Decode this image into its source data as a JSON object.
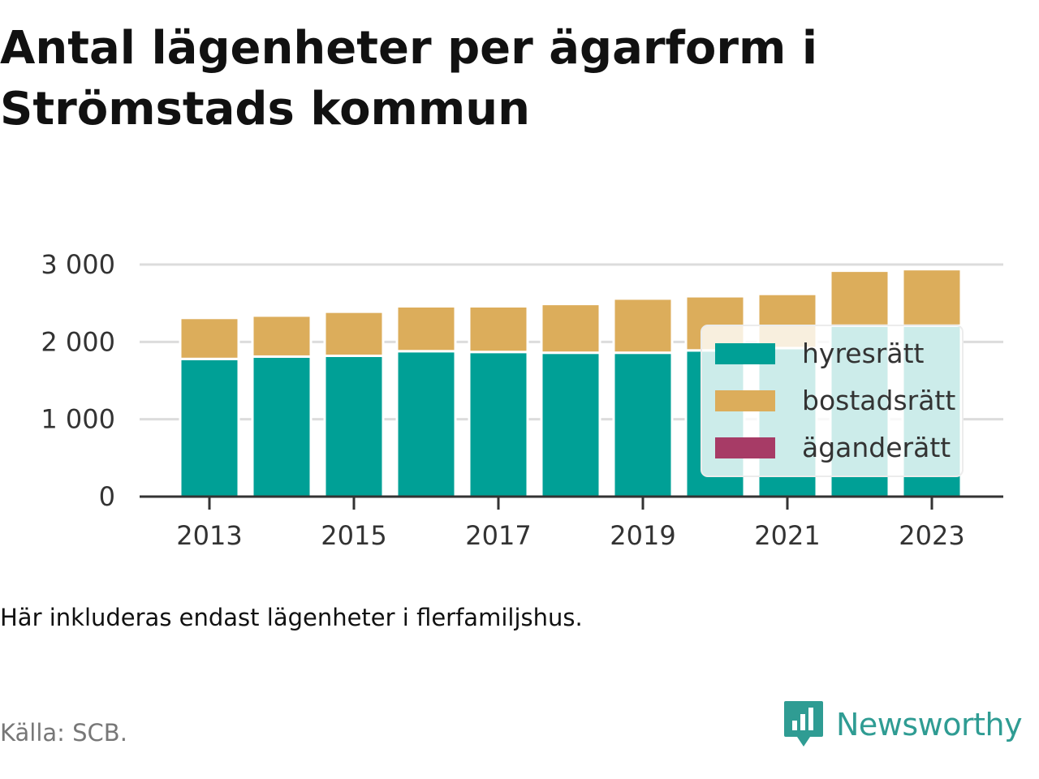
{
  "title": "Antal lägenheter per ägarform i Strömstads kommun",
  "note": "Här inkluderas endast lägenheter i flerfamiljshus.",
  "source": "Källa: SCB.",
  "brand": {
    "name": "Newsworthy",
    "color": "#2f9c93",
    "icon": "newsworthy-chart-bubble-icon"
  },
  "chart_data": {
    "type": "bar",
    "stacked": true,
    "title": "Antal lägenheter per ägarform i Strömstads kommun",
    "xlabel": "",
    "ylabel": "",
    "categories": [
      "2013",
      "2014",
      "2015",
      "2016",
      "2017",
      "2018",
      "2019",
      "2020",
      "2021",
      "2022",
      "2023"
    ],
    "x_tick_labels": [
      "2013",
      "2015",
      "2017",
      "2019",
      "2021",
      "2023"
    ],
    "y_tick_labels": [
      "0",
      "1 000",
      "2 000",
      "3 000"
    ],
    "y_ticks": [
      0,
      1000,
      2000,
      3000
    ],
    "ylim": [
      0,
      3000
    ],
    "grid": true,
    "legend_position": "bottom-right",
    "series": [
      {
        "name": "hyresrätt",
        "color": "#00a096",
        "values": [
          1780,
          1810,
          1820,
          1880,
          1870,
          1860,
          1860,
          1890,
          1920,
          2210,
          2210
        ]
      },
      {
        "name": "bostadsrätt",
        "color": "#dcad5b",
        "values": [
          530,
          530,
          570,
          580,
          590,
          630,
          700,
          700,
          700,
          710,
          730
        ]
      },
      {
        "name": "äganderätt",
        "color": "#a73b66",
        "values": [
          0,
          0,
          0,
          0,
          0,
          0,
          0,
          0,
          0,
          0,
          0
        ]
      }
    ]
  }
}
